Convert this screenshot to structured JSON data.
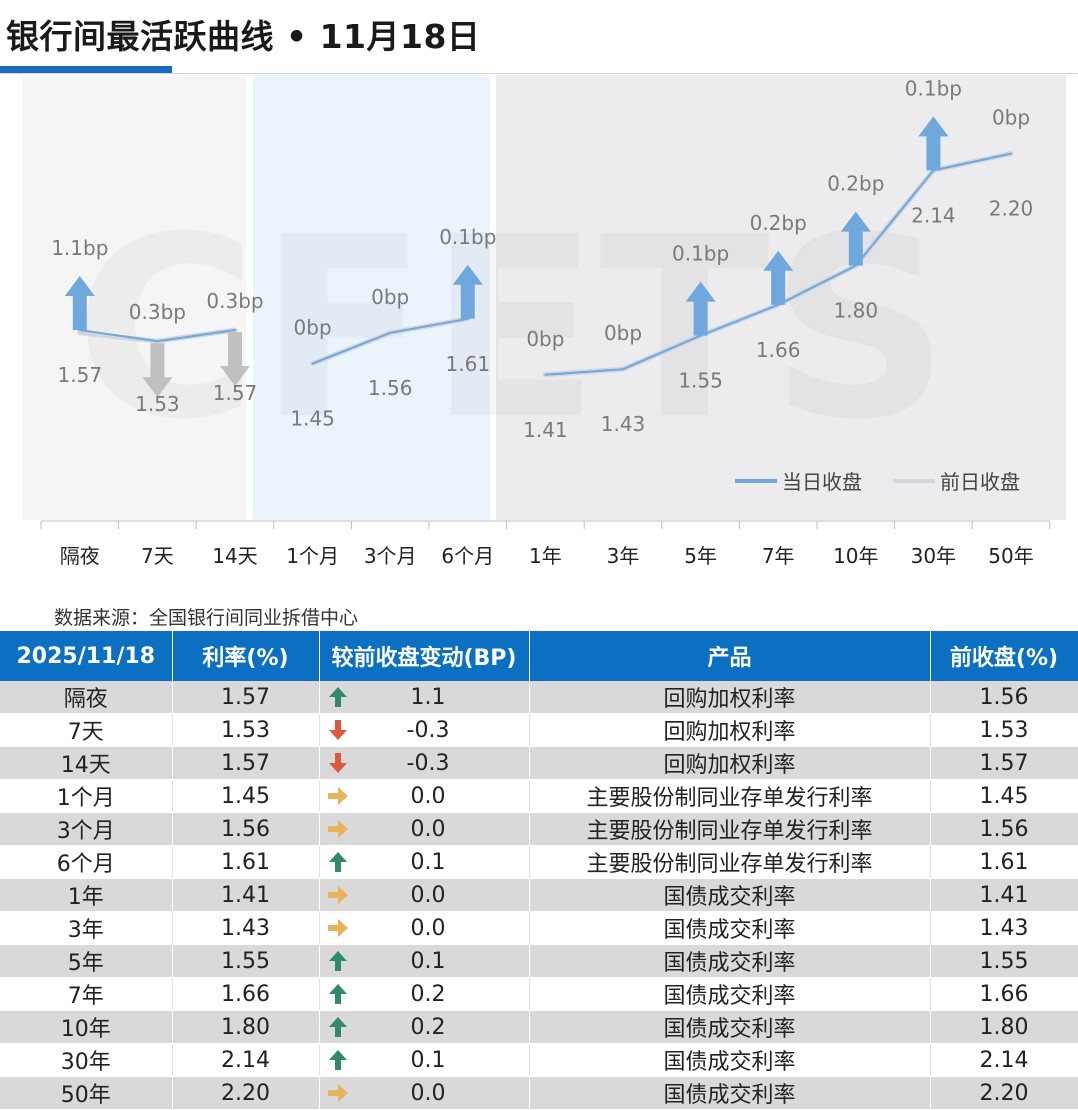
{
  "title": "银行间最活跃曲线 • 11月18日",
  "source": "数据来源：全国银行间同业拆借中心",
  "watermark": "CFETS",
  "colors": {
    "accent": "#1a6bbf",
    "header_bg": "#0b6fc2",
    "current_line": "#6fa8dc",
    "prev_line": "#cfd6de",
    "up_chart": "#6fa8dc",
    "down_chart": "#c0c0c0",
    "up_table": "#2f8a6e",
    "down_table": "#e0573b",
    "flat_table": "#e8b45a",
    "band_short": "#f5f5f5",
    "band_mid": "#ebf3fc",
    "band_long": "#ececee"
  },
  "chart_data": {
    "type": "line",
    "categories": [
      "隔夜",
      "7天",
      "14天",
      "1个月",
      "3个月",
      "6个月",
      "1年",
      "3年",
      "5年",
      "7年",
      "10年",
      "30年",
      "50年"
    ],
    "segments": [
      [
        0,
        2
      ],
      [
        3,
        5
      ],
      [
        6,
        12
      ]
    ],
    "series": [
      {
        "name": "当日收盘",
        "values": [
          1.57,
          1.53,
          1.57,
          1.45,
          1.56,
          1.61,
          1.41,
          1.43,
          1.55,
          1.66,
          1.8,
          2.14,
          2.2
        ]
      },
      {
        "name": "前日收盘",
        "values": [
          1.56,
          1.53,
          1.57,
          1.45,
          1.56,
          1.61,
          1.41,
          1.43,
          1.55,
          1.66,
          1.8,
          2.14,
          2.2
        ]
      }
    ],
    "value_labels": [
      "1.57",
      "1.53",
      "1.57",
      "1.45",
      "1.56",
      "1.61",
      "1.41",
      "1.43",
      "1.55",
      "1.66",
      "1.80",
      "2.14",
      "2.20"
    ],
    "change_labels": [
      "1.1bp",
      "0.3bp",
      "0.3bp",
      "0bp",
      "0bp",
      "0.1bp",
      "0bp",
      "0bp",
      "0.1bp",
      "0.2bp",
      "0.2bp",
      "0.1bp",
      "0bp"
    ],
    "directions": [
      "up",
      "down",
      "down",
      "flat",
      "flat",
      "up",
      "flat",
      "flat",
      "up",
      "up",
      "up",
      "up",
      "flat"
    ],
    "legend": [
      "当日收盘",
      "前日收盘"
    ],
    "legend_position": "bottom-right",
    "grid": false
  },
  "table": {
    "headers": [
      "2025/11/18",
      "利率(%)",
      "较前收盘变动(BP)",
      "产品",
      "前收盘(%)"
    ],
    "rows": [
      {
        "term": "隔夜",
        "rate": "1.57",
        "dir": "up",
        "change": "1.1",
        "product": "回购加权利率",
        "prev": "1.56"
      },
      {
        "term": "7天",
        "rate": "1.53",
        "dir": "down",
        "change": "-0.3",
        "product": "回购加权利率",
        "prev": "1.53"
      },
      {
        "term": "14天",
        "rate": "1.57",
        "dir": "down",
        "change": "-0.3",
        "product": "回购加权利率",
        "prev": "1.57"
      },
      {
        "term": "1个月",
        "rate": "1.45",
        "dir": "flat",
        "change": "0.0",
        "product": "主要股份制同业存单发行利率",
        "prev": "1.45"
      },
      {
        "term": "3个月",
        "rate": "1.56",
        "dir": "flat",
        "change": "0.0",
        "product": "主要股份制同业存单发行利率",
        "prev": "1.56"
      },
      {
        "term": "6个月",
        "rate": "1.61",
        "dir": "up",
        "change": "0.1",
        "product": "主要股份制同业存单发行利率",
        "prev": "1.61"
      },
      {
        "term": "1年",
        "rate": "1.41",
        "dir": "flat",
        "change": "0.0",
        "product": "国债成交利率",
        "prev": "1.41"
      },
      {
        "term": "3年",
        "rate": "1.43",
        "dir": "flat",
        "change": "0.0",
        "product": "国债成交利率",
        "prev": "1.43"
      },
      {
        "term": "5年",
        "rate": "1.55",
        "dir": "up",
        "change": "0.1",
        "product": "国债成交利率",
        "prev": "1.55"
      },
      {
        "term": "7年",
        "rate": "1.66",
        "dir": "up",
        "change": "0.2",
        "product": "国债成交利率",
        "prev": "1.66"
      },
      {
        "term": "10年",
        "rate": "1.80",
        "dir": "up",
        "change": "0.2",
        "product": "国债成交利率",
        "prev": "1.80"
      },
      {
        "term": "30年",
        "rate": "2.14",
        "dir": "up",
        "change": "0.1",
        "product": "国债成交利率",
        "prev": "2.14"
      },
      {
        "term": "50年",
        "rate": "2.20",
        "dir": "flat",
        "change": "0.0",
        "product": "国债成交利率",
        "prev": "2.20"
      }
    ]
  }
}
